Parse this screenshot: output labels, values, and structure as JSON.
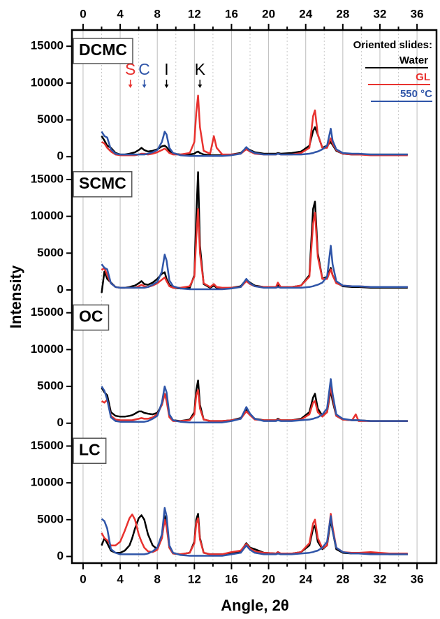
{
  "chart_data": [
    {
      "type": "line",
      "title": "DCMC",
      "ylabel": "Intensity",
      "legend_title": "Oriented slides:",
      "legend": "upper right",
      "xlim": [
        -1.2,
        38.1
      ],
      "ylim": [
        -900,
        17200
      ],
      "xticks": [
        0,
        4,
        8,
        12,
        16,
        20,
        24,
        28,
        32,
        36
      ],
      "xminor": [
        2,
        6,
        10,
        14,
        18,
        22,
        26,
        30,
        34
      ],
      "yticks": [
        0,
        5000,
        10000,
        15000
      ],
      "annotations": [
        {
          "text": "S",
          "x": 5.1,
          "color": "#e8322f"
        },
        {
          "text": "C",
          "x": 6.6,
          "color": "#2f55a8"
        },
        {
          "text": "I",
          "x": 9.0,
          "color": "#000000"
        },
        {
          "text": "K",
          "x": 12.6,
          "color": "#000000"
        }
      ],
      "x": [
        2,
        2.3,
        2.6,
        3,
        3.5,
        4,
        4.5,
        5,
        5.3,
        5.6,
        6,
        6.3,
        6.6,
        7,
        7.5,
        8,
        8.5,
        8.8,
        9,
        9.3,
        9.7,
        10.5,
        11.5,
        12,
        12.2,
        12.4,
        12.6,
        13,
        13.7,
        14.1,
        14.4,
        15,
        16,
        17,
        17.6,
        18,
        18.5,
        19.5,
        20.8,
        21,
        21.3,
        22.5,
        23.5,
        24.4,
        24.8,
        25,
        25.3,
        25.8,
        26.3,
        26.7,
        26.9,
        27.3,
        28,
        29,
        29.4,
        29.7,
        31,
        33,
        35
      ],
      "series": [
        {
          "name": "Water",
          "color": "#000000",
          "values": [
            2800,
            2200,
            1500,
            1200,
            500,
            300,
            300,
            400,
            500,
            600,
            900,
            1200,
            900,
            700,
            800,
            1000,
            1400,
            1500,
            1300,
            800,
            400,
            300,
            300,
            400,
            600,
            700,
            500,
            300,
            200,
            200,
            200,
            200,
            300,
            500,
            1200,
            900,
            600,
            400,
            400,
            500,
            400,
            500,
            700,
            1500,
            3500,
            4000,
            3000,
            1200,
            1500,
            2000,
            1600,
            800,
            400,
            300,
            300,
            300,
            300,
            300,
            300
          ]
        },
        {
          "name": "GL",
          "color": "#e8322f",
          "values": [
            2000,
            1800,
            1200,
            700,
            300,
            200,
            200,
            200,
            200,
            200,
            300,
            400,
            400,
            300,
            400,
            600,
            900,
            1100,
            900,
            500,
            300,
            300,
            500,
            2000,
            6000,
            8300,
            4000,
            800,
            400,
            2800,
            1200,
            300,
            300,
            400,
            1000,
            700,
            400,
            300,
            300,
            400,
            300,
            300,
            500,
            1200,
            5500,
            6300,
            3000,
            1200,
            1200,
            2500,
            1800,
            900,
            400,
            300,
            300,
            300,
            200,
            200,
            200
          ]
        },
        {
          "name": "550 °C",
          "color": "#2f55a8",
          "values": [
            3400,
            2800,
            2600,
            1000,
            400,
            300,
            300,
            300,
            300,
            300,
            300,
            300,
            300,
            400,
            600,
            900,
            2000,
            3400,
            3000,
            1200,
            500,
            200,
            100,
            100,
            100,
            100,
            100,
            100,
            100,
            100,
            100,
            100,
            200,
            400,
            1300,
            800,
            500,
            300,
            300,
            400,
            300,
            300,
            300,
            400,
            500,
            600,
            700,
            1000,
            1500,
            3800,
            2200,
            1000,
            500,
            400,
            400,
            400,
            300,
            300,
            300
          ]
        }
      ]
    },
    {
      "type": "line",
      "title": "SCMC",
      "xlim": [
        -1.2,
        38.1
      ],
      "ylim": [
        -900,
        17200
      ],
      "xticks": [
        0,
        4,
        8,
        12,
        16,
        20,
        24,
        28,
        32,
        36
      ],
      "xminor": [
        2,
        6,
        10,
        14,
        18,
        22,
        26,
        30,
        34
      ],
      "yticks": [
        0,
        5000,
        10000,
        15000
      ],
      "x": [
        2,
        2.3,
        2.6,
        3,
        3.5,
        4,
        4.5,
        5,
        5.3,
        5.6,
        6,
        6.3,
        6.6,
        7,
        7.5,
        8,
        8.5,
        8.8,
        9,
        9.3,
        9.7,
        10.5,
        11.5,
        12,
        12.2,
        12.4,
        12.6,
        13,
        13.7,
        14.1,
        14.4,
        15,
        16,
        17,
        17.6,
        18,
        18.5,
        19.5,
        20.8,
        21,
        21.3,
        22.5,
        23.5,
        24.4,
        24.8,
        25,
        25.3,
        25.8,
        26.3,
        26.7,
        26.9,
        27.3,
        28,
        29,
        29.4,
        29.7,
        31,
        33,
        35
      ],
      "series": [
        {
          "color": "#000000",
          "values": [
            -400,
            2500,
            1500,
            1000,
            400,
            300,
            300,
            400,
            500,
            600,
            900,
            1200,
            800,
            700,
            1000,
            1500,
            2200,
            2400,
            1500,
            700,
            300,
            200,
            300,
            2000,
            10000,
            16000,
            6000,
            800,
            300,
            600,
            300,
            200,
            300,
            500,
            1400,
            1000,
            600,
            400,
            400,
            600,
            400,
            400,
            600,
            2000,
            11000,
            12000,
            5000,
            1500,
            1800,
            3000,
            2000,
            1000,
            500,
            400,
            400,
            400,
            300,
            300,
            300
          ]
        },
        {
          "color": "#e8322f",
          "values": [
            2700,
            3000,
            2000,
            900,
            400,
            300,
            300,
            300,
            300,
            300,
            500,
            700,
            500,
            400,
            600,
            900,
            1400,
            1700,
            1200,
            500,
            300,
            300,
            500,
            1800,
            7000,
            11000,
            5000,
            900,
            400,
            800,
            400,
            300,
            300,
            400,
            1200,
            800,
            500,
            400,
            400,
            1000,
            400,
            400,
            600,
            1800,
            9000,
            10500,
            4500,
            1500,
            1500,
            2800,
            2000,
            900,
            600,
            500,
            500,
            500,
            400,
            400,
            400
          ]
        },
        {
          "color": "#2f55a8",
          "values": [
            3500,
            3000,
            2800,
            900,
            400,
            300,
            300,
            300,
            300,
            300,
            300,
            300,
            300,
            400,
            700,
            1100,
            2500,
            4800,
            4000,
            1300,
            500,
            200,
            100,
            100,
            100,
            100,
            100,
            100,
            100,
            100,
            100,
            100,
            200,
            400,
            1500,
            900,
            500,
            300,
            300,
            400,
            300,
            300,
            300,
            400,
            500,
            600,
            700,
            1000,
            1800,
            6000,
            3500,
            1200,
            600,
            500,
            500,
            500,
            400,
            400,
            400
          ]
        }
      ]
    },
    {
      "type": "line",
      "title": "OC",
      "xlim": [
        -1.2,
        38.1
      ],
      "ylim": [
        -900,
        17200
      ],
      "xticks": [
        0,
        4,
        8,
        12,
        16,
        20,
        24,
        28,
        32,
        36
      ],
      "xminor": [
        2,
        6,
        10,
        14,
        18,
        22,
        26,
        30,
        34
      ],
      "yticks": [
        0,
        5000,
        10000,
        15000
      ],
      "x": [
        2,
        2.3,
        2.6,
        3,
        3.5,
        4,
        4.5,
        5,
        5.3,
        5.6,
        6,
        6.3,
        6.6,
        7,
        7.5,
        8,
        8.5,
        8.8,
        9,
        9.3,
        9.7,
        10.5,
        11.5,
        12,
        12.2,
        12.4,
        12.6,
        13,
        13.7,
        14.1,
        14.4,
        15,
        16,
        17,
        17.6,
        18,
        18.5,
        19.5,
        20.8,
        21,
        21.3,
        22.5,
        23.5,
        24.4,
        24.8,
        25,
        25.3,
        25.8,
        26.3,
        26.7,
        26.9,
        27.3,
        28,
        29,
        29.4,
        29.7,
        31,
        33,
        35
      ],
      "series": [
        {
          "color": "#000000",
          "values": [
            4800,
            4200,
            3800,
            1500,
            1000,
            900,
            900,
            1000,
            1100,
            1300,
            1600,
            1600,
            1400,
            1300,
            1200,
            1400,
            2500,
            4000,
            3500,
            1000,
            400,
            300,
            500,
            1500,
            4500,
            5800,
            2500,
            500,
            300,
            300,
            300,
            300,
            400,
            700,
            1800,
            1200,
            600,
            400,
            400,
            600,
            400,
            400,
            600,
            1500,
            3500,
            4000,
            2000,
            1000,
            1500,
            4500,
            3000,
            1000,
            500,
            400,
            400,
            400,
            300,
            300,
            300
          ]
        },
        {
          "color": "#e8322f",
          "values": [
            3000,
            2800,
            3200,
            1000,
            500,
            400,
            400,
            400,
            400,
            500,
            600,
            700,
            600,
            600,
            800,
            1200,
            2500,
            4000,
            3000,
            800,
            300,
            300,
            400,
            1200,
            3800,
            4500,
            2000,
            500,
            300,
            300,
            300,
            300,
            400,
            600,
            1600,
            1100,
            500,
            400,
            400,
            500,
            400,
            400,
            500,
            1200,
            2800,
            3000,
            1500,
            900,
            1500,
            5000,
            3500,
            1000,
            500,
            400,
            1200,
            300,
            300,
            300,
            300
          ]
        },
        {
          "color": "#2f55a8",
          "values": [
            5000,
            4400,
            3200,
            800,
            300,
            200,
            200,
            200,
            200,
            200,
            200,
            200,
            200,
            300,
            600,
            1000,
            2800,
            5000,
            4200,
            1200,
            400,
            200,
            100,
            100,
            100,
            100,
            100,
            100,
            100,
            100,
            100,
            100,
            300,
            600,
            2200,
            1300,
            600,
            300,
            300,
            400,
            300,
            300,
            400,
            500,
            600,
            700,
            800,
            1200,
            2000,
            6000,
            4000,
            1200,
            600,
            400,
            400,
            400,
            300,
            300,
            300
          ]
        }
      ]
    },
    {
      "type": "line",
      "title": "LC",
      "xlabel": "Angle, 2θ",
      "xlim": [
        -1.2,
        38.1
      ],
      "ylim": [
        -900,
        17200
      ],
      "xticks": [
        0,
        4,
        8,
        12,
        16,
        20,
        24,
        28,
        32,
        36
      ],
      "xminor": [
        2,
        6,
        10,
        14,
        18,
        22,
        26,
        30,
        34
      ],
      "yticks": [
        0,
        5000,
        10000,
        15000
      ],
      "x": [
        2,
        2.3,
        2.6,
        3,
        3.5,
        4,
        4.5,
        5,
        5.3,
        5.6,
        6,
        6.3,
        6.6,
        7,
        7.5,
        8,
        8.5,
        8.8,
        9,
        9.3,
        9.7,
        10.5,
        11.5,
        12,
        12.2,
        12.4,
        12.6,
        13,
        13.7,
        14.1,
        14.4,
        15,
        16,
        17,
        17.6,
        18,
        18.5,
        19.5,
        20.8,
        21,
        21.3,
        22.5,
        23.5,
        24.4,
        24.8,
        25,
        25.3,
        25.8,
        26.3,
        26.7,
        26.9,
        27.3,
        28,
        29,
        29.4,
        29.7,
        31,
        33,
        35
      ],
      "series": [
        {
          "color": "#000000",
          "values": [
            1500,
            2500,
            1800,
            800,
            500,
            500,
            800,
            1500,
            2500,
            3800,
            5200,
            5600,
            5000,
            3000,
            1500,
            1000,
            2500,
            5500,
            4500,
            1200,
            400,
            300,
            500,
            2000,
            5000,
            5800,
            2500,
            500,
            300,
            300,
            300,
            300,
            400,
            700,
            1800,
            1200,
            1000,
            500,
            400,
            600,
            400,
            400,
            600,
            1500,
            3800,
            4200,
            2000,
            1000,
            1500,
            5000,
            3500,
            1000,
            500,
            400,
            400,
            400,
            500,
            300,
            300
          ]
        },
        {
          "color": "#e8322f",
          "values": [
            3200,
            2500,
            2200,
            1500,
            1500,
            2000,
            3500,
            5200,
            5700,
            5000,
            3000,
            2000,
            1200,
            700,
            600,
            900,
            2500,
            5000,
            4000,
            1200,
            400,
            300,
            500,
            1800,
            4500,
            5200,
            2300,
            500,
            300,
            300,
            300,
            300,
            600,
            800,
            1700,
            1100,
            700,
            500,
            400,
            600,
            400,
            400,
            600,
            1800,
            4500,
            5000,
            2500,
            1100,
            1500,
            5800,
            4000,
            1200,
            600,
            500,
            500,
            500,
            600,
            400,
            400
          ]
        },
        {
          "color": "#2f55a8",
          "values": [
            5100,
            4800,
            3800,
            1000,
            500,
            300,
            300,
            300,
            300,
            300,
            300,
            300,
            300,
            400,
            700,
            1200,
            3000,
            6600,
            5500,
            1500,
            500,
            200,
            100,
            100,
            100,
            100,
            100,
            100,
            100,
            100,
            100,
            100,
            300,
            500,
            1500,
            900,
            500,
            300,
            300,
            400,
            300,
            300,
            400,
            500,
            600,
            700,
            800,
            1200,
            2000,
            5500,
            3500,
            1200,
            600,
            400,
            400,
            400,
            300,
            300,
            300
          ]
        }
      ]
    }
  ]
}
